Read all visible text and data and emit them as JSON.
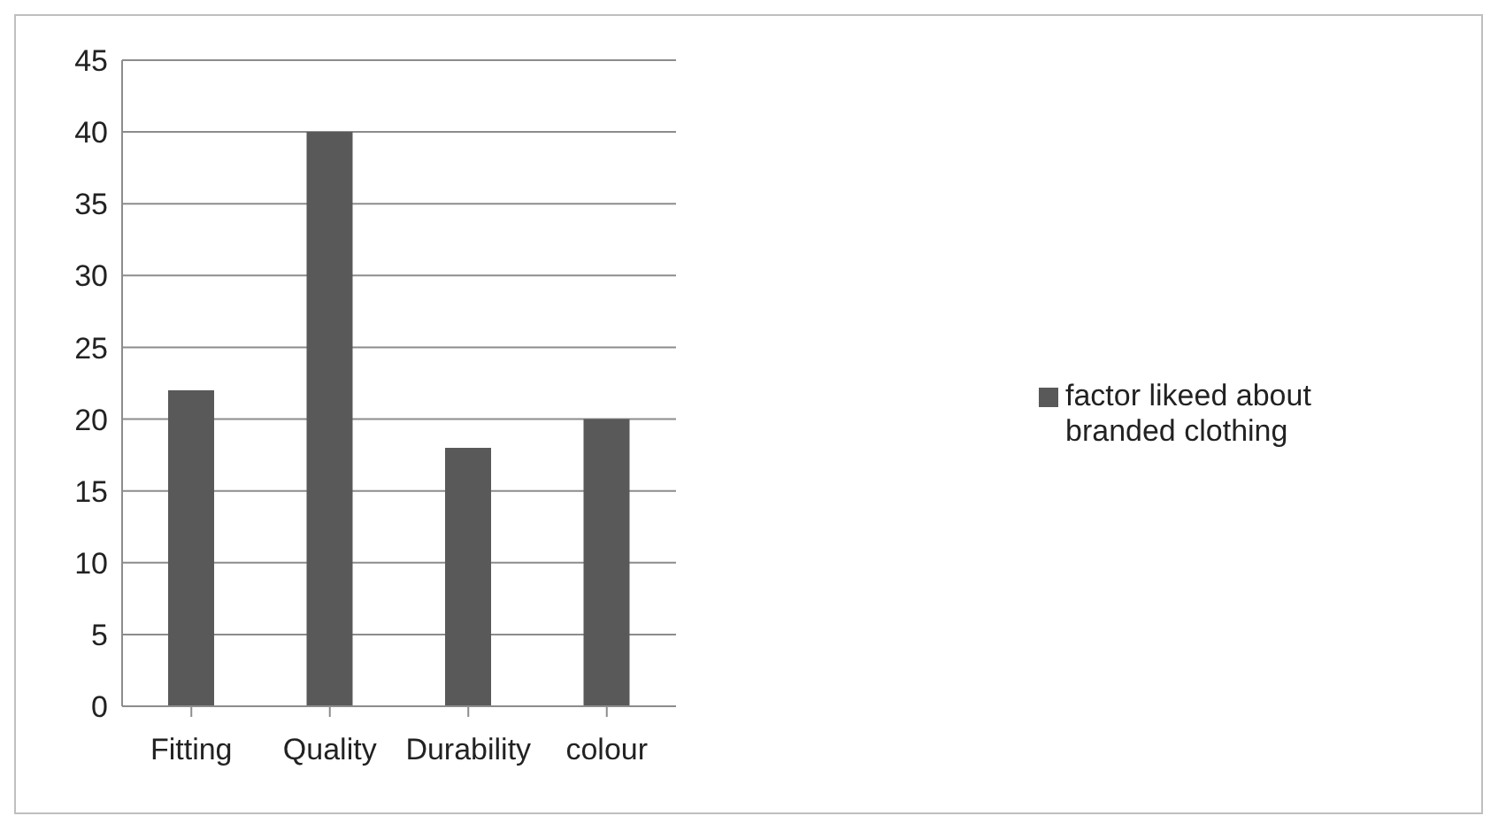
{
  "chart_data": {
    "type": "bar",
    "categories": [
      "Fitting",
      "Quality",
      "Durability",
      "colour"
    ],
    "series": [
      {
        "name": "factor likeed about branded clothing",
        "color": "#595959",
        "values": [
          22,
          40,
          18,
          20
        ]
      }
    ],
    "ylim": [
      0,
      45
    ],
    "yticks": [
      0,
      5,
      10,
      15,
      20,
      25,
      30,
      35,
      40,
      45
    ],
    "grid": "y",
    "legend": "right"
  }
}
